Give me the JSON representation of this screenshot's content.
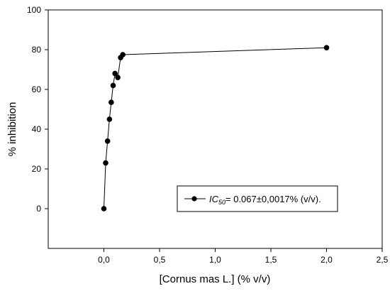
{
  "chart_data": {
    "type": "line",
    "xlabel": "[Cornus mas L.] (% v/v)",
    "ylabel": "% inhibition",
    "xlim": [
      -0.5,
      2.5
    ],
    "ylim": [
      -20,
      100
    ],
    "xticks": [
      0.0,
      0.5,
      1.0,
      1.5,
      2.0,
      2.5
    ],
    "xtick_labels": [
      "0,0",
      "0,5",
      "1,0",
      "1,5",
      "2,0",
      "2,5"
    ],
    "yticks": [
      0,
      20,
      40,
      60,
      80,
      100
    ],
    "ytick_labels": [
      "0",
      "20",
      "40",
      "60",
      "80",
      "100"
    ],
    "grid": false,
    "legend_position": "lower-right",
    "series": [
      {
        "x": [
          0.0,
          0.016,
          0.033,
          0.05,
          0.066,
          0.083,
          0.1,
          0.125,
          0.15,
          0.17,
          2.0
        ],
        "y": [
          0,
          23,
          34,
          45,
          53.5,
          62,
          68,
          66,
          76,
          77.5,
          81
        ],
        "color": "#000000"
      }
    ],
    "legend": {
      "entries": [
        {
          "prefix": "IC",
          "subscript": "50",
          "suffix": "= 0.067±0,0017% (v/v)."
        }
      ]
    }
  }
}
